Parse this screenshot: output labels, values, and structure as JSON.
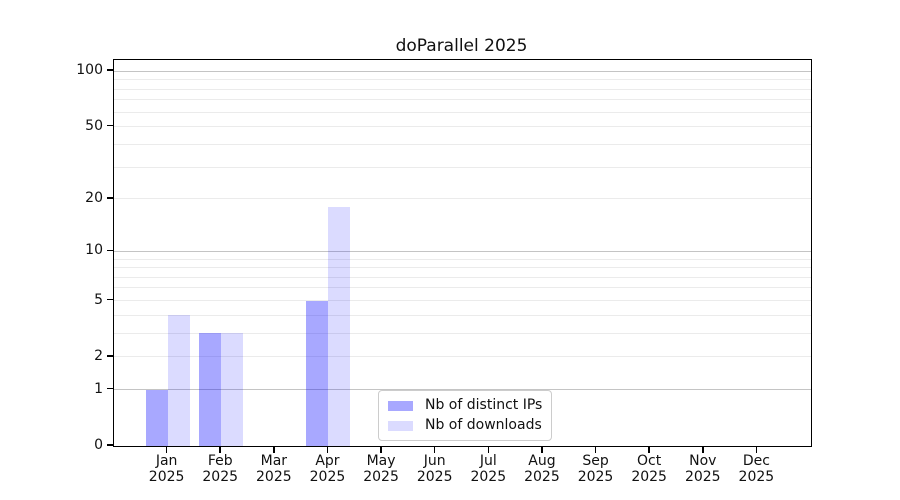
{
  "figure": {
    "title": "doParallel 2025"
  },
  "chart_data": {
    "type": "bar",
    "title": "doParallel 2025",
    "categories": [
      "Jan",
      "Feb",
      "Mar",
      "Apr",
      "May",
      "Jun",
      "Jul",
      "Aug",
      "Sep",
      "Oct",
      "Nov",
      "Dec"
    ],
    "x_year_label": "2025",
    "series": [
      {
        "name": "Nb of distinct IPs",
        "color": "rgba(0,0,255,0.34)",
        "values": [
          1,
          3,
          0,
          5,
          0,
          0,
          0,
          0,
          0,
          0,
          0,
          0
        ]
      },
      {
        "name": "Nb of downloads",
        "color": "rgba(0,0,255,0.14)",
        "values": [
          4,
          3,
          0,
          18,
          0,
          0,
          0,
          0,
          0,
          0,
          0,
          0
        ]
      }
    ],
    "yscale": "log10(1+v)",
    "ylim": [
      0,
      115
    ],
    "yticks": [
      0,
      1,
      2,
      5,
      10,
      20,
      50,
      100
    ],
    "gridlines": {
      "major": [
        1,
        10,
        100
      ],
      "minor": [
        2,
        3,
        4,
        5,
        6,
        7,
        8,
        9,
        20,
        30,
        40,
        50,
        60,
        70,
        80,
        90
      ]
    },
    "legend": {
      "position": "lower center inside"
    }
  },
  "colors": {
    "bar_distinct_ips": "rgba(0,0,255,0.34)",
    "bar_downloads": "rgba(0,0,255,0.14)",
    "grid_major": "#c4c4c4",
    "grid_minor": "#ebebeb",
    "spine": "#000000",
    "text": "#111111",
    "legend_border": "#cccccc",
    "background": "#ffffff"
  }
}
